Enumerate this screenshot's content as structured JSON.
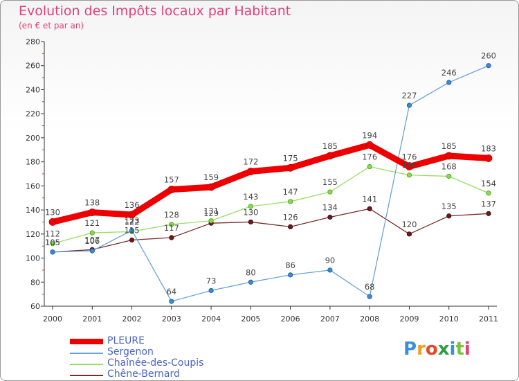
{
  "title": "Evolution des Impôts locaux par Habitant",
  "subtitle": "(en € et par an)",
  "logo": {
    "text": "Proxiti",
    "colors": [
      "#3a8fd8",
      "#f39b1a",
      "#e04a2a",
      "#2e9e3e",
      "#3a8fd8",
      "#7ac23a",
      "#e0407a"
    ]
  },
  "chart_data": {
    "type": "line",
    "title": "Evolution des Impôts locaux par Habitant",
    "subtitle": "(en € et par an)",
    "xlabel": "",
    "ylabel": "",
    "categories": [
      "2000",
      "2001",
      "2002",
      "2003",
      "2004",
      "2005",
      "2006",
      "2007",
      "2008",
      "2009",
      "2010",
      "2011"
    ],
    "ylim": [
      60,
      280
    ],
    "yticks": [
      60,
      80,
      100,
      120,
      140,
      160,
      180,
      200,
      220,
      240,
      260,
      280
    ],
    "grid": false,
    "legend_position": "bottom-left",
    "series": [
      {
        "name": "PLEURE",
        "color": "#ee0000",
        "values": [
          130,
          138,
          136,
          157,
          159,
          172,
          175,
          185,
          194,
          176,
          185,
          183
        ]
      },
      {
        "name": "Sergenon",
        "color": "#6aa2d8",
        "values": [
          105,
          106,
          123,
          64,
          73,
          80,
          86,
          90,
          68,
          227,
          246,
          260
        ]
      },
      {
        "name": "Chaînée-des-Coupis",
        "color": "#99dd66",
        "values": [
          112,
          121,
          122,
          128,
          131,
          143,
          147,
          155,
          176,
          169,
          168,
          154
        ]
      },
      {
        "name": "Chêne-Bernard",
        "color": "#7a2b2b",
        "values": [
          105,
          107,
          115,
          117,
          129,
          130,
          126,
          134,
          141,
          120,
          135,
          137
        ]
      }
    ]
  }
}
